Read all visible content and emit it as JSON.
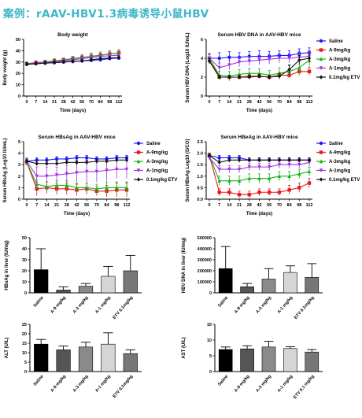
{
  "page": {
    "heading": "案例：rAAV-HBV1.3病毒诱导小鼠HBV"
  },
  "colors": {
    "Saline": "#1a1aff",
    "A-9mg/kg": "#e8191f",
    "A-3mg/kg": "#13b513",
    "A-1mg/kg": "#a433e8",
    "0.1mg/kg ETV": "#111111",
    "bar_black": "#000000",
    "bar_dark": "#555555",
    "bar_mid": "#8a8a8a",
    "bar_light": "#d5d5d5",
    "bar_gray": "#777777"
  },
  "chart_data": [
    {
      "id": "bw",
      "type": "line",
      "title": "Body weight",
      "xlabel": "Time (days)",
      "ylabel": "Body weight (g)",
      "ylim": [
        0,
        50
      ],
      "yticks": [
        "0",
        "10",
        "20",
        "30",
        "40",
        "50"
      ],
      "x": [
        0,
        7,
        14,
        21,
        28,
        42,
        56,
        70,
        84,
        98,
        112
      ],
      "xtick_labels": [
        "0",
        "7",
        "14",
        "21",
        "28",
        "42",
        "56",
        "70",
        "84",
        "98",
        "112"
      ],
      "legend": null,
      "series": [
        {
          "name": "Saline",
          "marker": "circle",
          "values": [
            28,
            28.5,
            29,
            29.5,
            30,
            30.5,
            31,
            31.5,
            32,
            33,
            33.5
          ],
          "err": [
            1.5,
            1.5,
            1.5,
            1.5,
            1.5,
            1.5,
            1.5,
            1.5,
            1.5,
            1.5,
            1.5
          ]
        },
        {
          "name": "A-9mg/kg",
          "marker": "square",
          "values": [
            28.5,
            29.5,
            30,
            31,
            32,
            33,
            34,
            35,
            36,
            37,
            38
          ],
          "err": [
            1.5,
            1.5,
            1.5,
            1.5,
            1.5,
            1.5,
            2,
            2,
            2,
            2,
            2
          ]
        },
        {
          "name": "A-3mg/kg",
          "marker": "triangle",
          "values": [
            28.5,
            29,
            30,
            31,
            31.5,
            33,
            34,
            35,
            36,
            37,
            38
          ],
          "err": [
            1.5,
            1.5,
            1.5,
            2,
            2,
            2,
            2.5,
            3,
            3,
            3,
            3
          ]
        },
        {
          "name": "A-1mg/kg",
          "marker": "tridown",
          "values": [
            28,
            29,
            29.5,
            30,
            31,
            32,
            33,
            34,
            35,
            35.5,
            36
          ],
          "err": [
            1.5,
            1.5,
            1.5,
            1.5,
            1.5,
            1.5,
            2,
            2,
            2,
            2,
            2
          ]
        },
        {
          "name": "0.1mg/kg ETV",
          "marker": "diamond",
          "values": [
            28,
            28.5,
            29,
            29.5,
            30,
            30.5,
            31,
            32,
            33,
            33.5,
            34
          ],
          "err": [
            1.5,
            1.5,
            1.5,
            1.5,
            1.5,
            1.5,
            1.5,
            1.5,
            1.5,
            1.5,
            1.5
          ]
        }
      ]
    },
    {
      "id": "dna",
      "type": "line",
      "title": "Serum HBV DNA in AAV-HBV mice",
      "xlabel": "Time (days)",
      "ylabel": "Serum HBV DNA (Log10 IU/mL)",
      "ylim": [
        0,
        6
      ],
      "yticks": [
        "0",
        "2",
        "4",
        "6"
      ],
      "x": [
        0,
        7,
        14,
        21,
        28,
        42,
        56,
        70,
        84,
        98,
        112
      ],
      "xtick_labels": [
        "0",
        "7",
        "14",
        "21",
        "28",
        "42",
        "56",
        "70",
        "84",
        "98",
        "112"
      ],
      "legend": "right",
      "series": [
        {
          "name": "Saline",
          "marker": "circle",
          "values": [
            4.0,
            4.0,
            4.1,
            4.1,
            4.2,
            4.2,
            4.2,
            4.3,
            4.3,
            4.5,
            4.6
          ],
          "err": [
            0.5,
            0.6,
            0.6,
            0.5,
            0.5,
            0.6,
            0.5,
            0.5,
            0.5,
            0.5,
            0.5
          ]
        },
        {
          "name": "A-9mg/kg",
          "marker": "square",
          "values": [
            4.0,
            2.0,
            2.0,
            2.0,
            2.1,
            2.1,
            2.0,
            2.2,
            2.2,
            2.6,
            2.6
          ],
          "err": [
            0.4,
            0.2,
            0.2,
            0.2,
            0.2,
            0.2,
            0.2,
            0.3,
            0.3,
            0.4,
            0.4
          ]
        },
        {
          "name": "A-3mg/kg",
          "marker": "triangle",
          "values": [
            4.0,
            2.2,
            2.1,
            2.3,
            2.4,
            2.4,
            2.2,
            2.4,
            2.6,
            3.0,
            3.8
          ],
          "err": [
            0.4,
            0.4,
            0.5,
            0.5,
            0.5,
            0.5,
            0.5,
            0.6,
            0.6,
            0.8,
            0.8
          ]
        },
        {
          "name": "A-1mg/kg",
          "marker": "tridown",
          "values": [
            4.0,
            3.0,
            3.3,
            3.6,
            3.7,
            3.8,
            3.9,
            4.0,
            4.0,
            4.1,
            4.2
          ],
          "err": [
            0.4,
            0.5,
            0.5,
            0.5,
            0.5,
            0.5,
            0.5,
            0.5,
            0.5,
            0.6,
            0.6
          ]
        },
        {
          "name": "0.1mg/kg ETV",
          "marker": "diamond",
          "values": [
            3.7,
            2.0,
            2.0,
            2.0,
            2.0,
            2.1,
            2.0,
            2.1,
            2.8,
            3.8,
            4.0
          ],
          "err": [
            0.3,
            0.2,
            0.2,
            0.2,
            0.2,
            0.2,
            0.2,
            0.3,
            0.5,
            0.5,
            0.5
          ]
        }
      ]
    },
    {
      "id": "hbsag",
      "type": "line",
      "title": "Serum HBsAg in AAV-HBV mice",
      "xlabel": "Time (days)",
      "ylabel": "Serum HBsAg (Log10 IU/mL)",
      "ylim": [
        0,
        5
      ],
      "yticks": [
        "0",
        "1",
        "2",
        "3",
        "4",
        "5"
      ],
      "x": [
        0,
        7,
        14,
        21,
        28,
        42,
        56,
        70,
        84,
        98,
        112
      ],
      "xtick_labels": [
        "0",
        "7",
        "14",
        "21",
        "28",
        "42",
        "56",
        "70",
        "84",
        "98",
        "112"
      ],
      "legend": "right",
      "series": [
        {
          "name": "Saline",
          "marker": "circle",
          "values": [
            3.3,
            3.4,
            3.4,
            3.5,
            3.5,
            3.6,
            3.6,
            3.5,
            3.5,
            3.6,
            3.6
          ],
          "err": [
            0.2,
            0.2,
            0.2,
            0.2,
            0.2,
            0.2,
            0.2,
            0.2,
            0.2,
            0.2,
            0.2
          ]
        },
        {
          "name": "A-9mg/kg",
          "marker": "square",
          "values": [
            3.2,
            0.9,
            1.0,
            0.9,
            0.9,
            0.8,
            0.9,
            0.7,
            0.7,
            0.8,
            0.8
          ],
          "err": [
            0.2,
            0.6,
            0.5,
            0.5,
            0.5,
            0.5,
            0.5,
            0.4,
            0.5,
            0.6,
            0.6
          ]
        },
        {
          "name": "A-3mg/kg",
          "marker": "triangle",
          "values": [
            3.2,
            1.3,
            1.1,
            1.2,
            1.2,
            1.0,
            1.0,
            0.9,
            1.0,
            1.0,
            1.0
          ],
          "err": [
            0.3,
            0.4,
            0.4,
            0.4,
            0.4,
            0.4,
            0.4,
            0.4,
            0.5,
            0.5,
            0.5
          ]
        },
        {
          "name": "A-1mg/kg",
          "marker": "tridown",
          "values": [
            3.3,
            2.0,
            2.0,
            2.1,
            2.2,
            2.3,
            2.4,
            2.4,
            2.5,
            2.6,
            2.6
          ],
          "err": [
            0.3,
            0.8,
            0.8,
            0.7,
            0.7,
            0.8,
            0.9,
            0.9,
            0.9,
            0.8,
            0.8
          ]
        },
        {
          "name": "0.1mg/kg ETV",
          "marker": "diamond",
          "values": [
            3.3,
            3.1,
            3.1,
            3.1,
            3.2,
            3.2,
            3.2,
            3.3,
            3.3,
            3.4,
            3.4
          ],
          "err": [
            0.2,
            0.2,
            0.2,
            0.2,
            0.2,
            0.2,
            0.2,
            0.2,
            0.2,
            0.2,
            0.2
          ]
        }
      ]
    },
    {
      "id": "hbeag",
      "type": "line",
      "title": "Serum HBeAg in AAV-HBV mice",
      "xlabel": "Time (days)",
      "ylabel": "Serum HBeAg Log10 (S/CO)",
      "ylim": [
        0,
        2.5
      ],
      "yticks": [
        "0.0",
        "0.5",
        "1.0",
        "1.5",
        "2.0",
        "2.5"
      ],
      "x": [
        0,
        7,
        14,
        21,
        28,
        42,
        56,
        70,
        84,
        98,
        112
      ],
      "xtick_labels": [
        "0",
        "7",
        "14",
        "21",
        "28",
        "42",
        "56",
        "70",
        "84",
        "98",
        "112"
      ],
      "legend": "right",
      "series": [
        {
          "name": "Saline",
          "marker": "circle",
          "values": [
            1.9,
            1.8,
            1.8,
            1.8,
            1.7,
            1.7,
            1.7,
            1.7,
            1.7,
            1.7,
            1.7
          ],
          "err": [
            0.1,
            0.1,
            0.1,
            0.1,
            0.1,
            0.1,
            0.1,
            0.1,
            0.1,
            0.1,
            0.1
          ]
        },
        {
          "name": "A-9mg/kg",
          "marker": "square",
          "values": [
            1.9,
            0.3,
            0.3,
            0.2,
            0.2,
            0.3,
            0.3,
            0.3,
            0.4,
            0.5,
            0.7
          ],
          "err": [
            0.1,
            0.15,
            0.15,
            0.15,
            0.15,
            0.15,
            0.15,
            0.15,
            0.2,
            0.2,
            0.2
          ]
        },
        {
          "name": "A-3mg/kg",
          "marker": "triangle",
          "values": [
            1.9,
            0.8,
            0.8,
            0.8,
            0.9,
            0.9,
            0.9,
            1.0,
            1.0,
            1.1,
            1.2
          ],
          "err": [
            0.1,
            0.2,
            0.2,
            0.2,
            0.2,
            0.2,
            0.2,
            0.2,
            0.2,
            0.2,
            0.2
          ]
        },
        {
          "name": "A-1mg/kg",
          "marker": "tridown",
          "values": [
            1.8,
            1.3,
            1.3,
            1.3,
            1.4,
            1.4,
            1.4,
            1.5,
            1.5,
            1.5,
            1.6
          ],
          "err": [
            0.1,
            0.15,
            0.15,
            0.15,
            0.15,
            0.15,
            0.15,
            0.15,
            0.15,
            0.15,
            0.15
          ]
        },
        {
          "name": "0.1mg/kg ETV",
          "marker": "diamond",
          "values": [
            1.9,
            1.6,
            1.7,
            1.7,
            1.7,
            1.7,
            1.7,
            1.7,
            1.7,
            1.7,
            1.7
          ],
          "err": [
            0.1,
            0.1,
            0.1,
            0.1,
            0.1,
            0.1,
            0.1,
            0.1,
            0.1,
            0.1,
            0.1
          ]
        }
      ]
    },
    {
      "id": "liver_hbsag",
      "type": "bar",
      "title": "",
      "ylabel": "HBsAg in liver (IU/mg)",
      "ylim": [
        0,
        50
      ],
      "yticks": [
        "0",
        "10",
        "20",
        "30",
        "40",
        "50"
      ],
      "categories": [
        "Saline",
        "A-9 mg/kg",
        "A-3 mg/kg",
        "A-1 mg/kg",
        "ETV 0.1mg/kg"
      ],
      "values": [
        21,
        2.5,
        6,
        15,
        20
      ],
      "err": [
        19,
        3,
        2.5,
        9,
        14
      ],
      "bar_colors": [
        "bar_black",
        "bar_dark",
        "bar_mid",
        "bar_light",
        "bar_gray"
      ]
    },
    {
      "id": "liver_dna",
      "type": "bar",
      "title": "",
      "ylabel": "HBV DNA in liver (IU/mg)",
      "ylim": [
        0,
        500000
      ],
      "yticks": [
        "0",
        "100000",
        "200000",
        "300000",
        "400000",
        "500000"
      ],
      "categories": [
        "Saline",
        "A-9 mg/kg",
        "A-3 mg/kg",
        "A-1 mg/kg",
        "ETV 0.1mg/kg"
      ],
      "values": [
        220000,
        55000,
        125000,
        185000,
        140000
      ],
      "err": [
        200000,
        30000,
        95000,
        60000,
        125000
      ],
      "bar_colors": [
        "bar_black",
        "bar_dark",
        "bar_mid",
        "bar_light",
        "bar_gray"
      ]
    },
    {
      "id": "alt",
      "type": "bar",
      "title": "",
      "ylabel": "ALT (U/L)",
      "ylim": [
        0,
        25
      ],
      "yticks": [
        "0",
        "5",
        "10",
        "15",
        "20",
        "25"
      ],
      "categories": [
        "Saline",
        "A-9 mg/kg",
        "A-3 mg/kg",
        "A-1 mg/kg",
        "ETV 0.1mg/kg"
      ],
      "values": [
        14.5,
        11.5,
        13,
        14.5,
        9.5
      ],
      "err": [
        2.5,
        2,
        2.5,
        6,
        2
      ],
      "bar_colors": [
        "bar_black",
        "bar_dark",
        "bar_mid",
        "bar_light",
        "bar_gray"
      ]
    },
    {
      "id": "ast",
      "type": "bar",
      "title": "",
      "ylabel": "AST (U/L)",
      "ylim": [
        0,
        15
      ],
      "yticks": [
        "0",
        "5",
        "10",
        "15"
      ],
      "categories": [
        "Saline",
        "A-9 mg/kg",
        "A-3 mg/kg",
        "A-1 mg/kg",
        "ETV 0.1 mg/kg"
      ],
      "values": [
        7,
        7.2,
        7.8,
        7.3,
        6.2
      ],
      "err": [
        0.8,
        1,
        1.8,
        0.6,
        0.8
      ],
      "bar_colors": [
        "bar_black",
        "bar_dark",
        "bar_mid",
        "bar_light",
        "bar_gray"
      ]
    }
  ]
}
